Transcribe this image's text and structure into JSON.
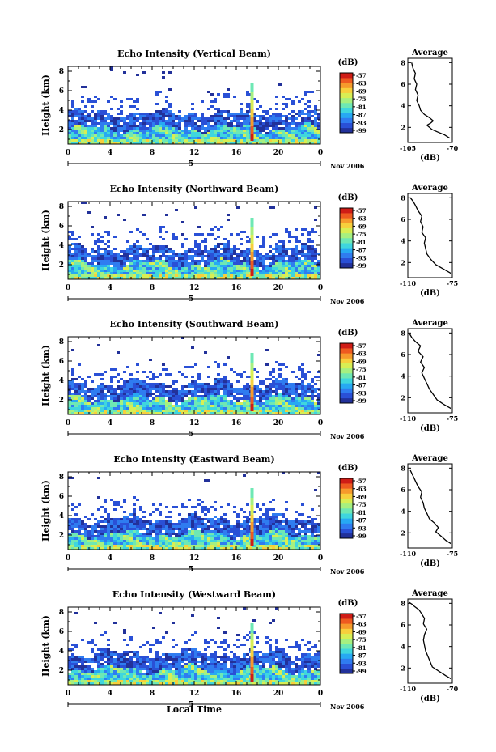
{
  "figure": {
    "xlabel": "Local Time",
    "date_label": "Nov 2006",
    "day_label": "5",
    "cbar_unit": "(dB)",
    "avg_title": "Average",
    "avg_xlabel": "(dB)"
  },
  "colormap": [
    "#22319a",
    "#2a50d6",
    "#2f7cf0",
    "#27a9f3",
    "#3fd6de",
    "#6ee8b4",
    "#a6f080",
    "#d8ee54",
    "#f7cf3c",
    "#f69a2c",
    "#ee5a20",
    "#cf1c16"
  ],
  "chart_data": [
    {
      "type": "heatmap",
      "title": "Echo Intensity (Vertical Beam)",
      "ylabel": "Height (km)",
      "x_ticks": [
        "0",
        "4",
        "8",
        "12",
        "16",
        "20",
        "0"
      ],
      "y_ticks": [
        "2",
        "4",
        "6",
        "8"
      ],
      "xlim": [
        0,
        24
      ],
      "ylim": [
        0.5,
        8.5
      ],
      "colorbar_ticks": [
        "-57",
        "-63",
        "-69",
        "-75",
        "-81",
        "-87",
        "-93",
        "-99"
      ],
      "average": {
        "xlim": [
          -105,
          -70
        ],
        "x_ticks": [
          "-105",
          "-70"
        ],
        "y_ticks": [
          "2",
          "4",
          "6",
          "8"
        ],
        "profile": [
          [
            -72,
            1.0
          ],
          [
            -76,
            1.3
          ],
          [
            -82,
            1.6
          ],
          [
            -86,
            1.8
          ],
          [
            -88,
            2.0
          ],
          [
            -90,
            2.2
          ],
          [
            -87,
            2.4
          ],
          [
            -85,
            2.6
          ],
          [
            -88,
            2.9
          ],
          [
            -92,
            3.2
          ],
          [
            -95,
            3.6
          ],
          [
            -96,
            4.0
          ],
          [
            -98,
            4.5
          ],
          [
            -97,
            5.0
          ],
          [
            -99,
            5.5
          ],
          [
            -98,
            6.0
          ],
          [
            -100,
            6.5
          ],
          [
            -99,
            7.0
          ],
          [
            -101,
            7.5
          ],
          [
            -102,
            8.0
          ]
        ]
      }
    },
    {
      "type": "heatmap",
      "title": "Echo Intensity (Northward Beam)",
      "ylabel": "Height (km)",
      "x_ticks": [
        "0",
        "4",
        "8",
        "12",
        "16",
        "20",
        "0"
      ],
      "y_ticks": [
        "2",
        "4",
        "6",
        "8"
      ],
      "xlim": [
        0,
        24
      ],
      "ylim": [
        0.5,
        8.5
      ],
      "colorbar_ticks": [
        "-57",
        "-63",
        "-69",
        "-75",
        "-81",
        "-87",
        "-93",
        "-99"
      ],
      "average": {
        "xlim": [
          -110,
          -75
        ],
        "x_ticks": [
          "-110",
          "-75"
        ],
        "y_ticks": [
          "2",
          "4",
          "6",
          "8"
        ],
        "profile": [
          [
            -76,
            1.0
          ],
          [
            -82,
            1.4
          ],
          [
            -88,
            1.8
          ],
          [
            -92,
            2.3
          ],
          [
            -95,
            2.8
          ],
          [
            -96,
            3.3
          ],
          [
            -97,
            3.8
          ],
          [
            -96,
            4.3
          ],
          [
            -99,
            4.8
          ],
          [
            -98,
            5.3
          ],
          [
            -100,
            5.8
          ],
          [
            -99,
            6.3
          ],
          [
            -102,
            6.8
          ],
          [
            -104,
            7.3
          ],
          [
            -106,
            7.7
          ],
          [
            -108,
            8.0
          ]
        ]
      }
    },
    {
      "type": "heatmap",
      "title": "Echo Intensity (Southward Beam)",
      "ylabel": "Height (km)",
      "x_ticks": [
        "0",
        "4",
        "8",
        "12",
        "16",
        "20",
        "0"
      ],
      "y_ticks": [
        "2",
        "4",
        "6",
        "8"
      ],
      "xlim": [
        0,
        24
      ],
      "ylim": [
        0.5,
        8.5
      ],
      "colorbar_ticks": [
        "-57",
        "-63",
        "-69",
        "-75",
        "-81",
        "-87",
        "-93",
        "-99"
      ],
      "average": {
        "xlim": [
          -110,
          -75
        ],
        "x_ticks": [
          "-110",
          "-75"
        ],
        "y_ticks": [
          "2",
          "4",
          "6",
          "8"
        ],
        "profile": [
          [
            -76,
            1.0
          ],
          [
            -82,
            1.4
          ],
          [
            -87,
            1.8
          ],
          [
            -90,
            2.3
          ],
          [
            -93,
            2.8
          ],
          [
            -95,
            3.3
          ],
          [
            -97,
            3.8
          ],
          [
            -99,
            4.3
          ],
          [
            -97,
            4.8
          ],
          [
            -100,
            5.3
          ],
          [
            -98,
            5.8
          ],
          [
            -102,
            6.3
          ],
          [
            -100,
            6.8
          ],
          [
            -104,
            7.2
          ],
          [
            -107,
            7.6
          ],
          [
            -109,
            8.0
          ]
        ]
      }
    },
    {
      "type": "heatmap",
      "title": "Echo Intensity (Eastward Beam)",
      "ylabel": "Height (km)",
      "x_ticks": [
        "0",
        "4",
        "8",
        "12",
        "16",
        "20",
        "0"
      ],
      "y_ticks": [
        "2",
        "4",
        "6",
        "8"
      ],
      "xlim": [
        0,
        24
      ],
      "ylim": [
        0.5,
        8.5
      ],
      "colorbar_ticks": [
        "-57",
        "-63",
        "-69",
        "-75",
        "-81",
        "-87",
        "-93",
        "-99"
      ],
      "average": {
        "xlim": [
          -110,
          -75
        ],
        "x_ticks": [
          "-110",
          "-75"
        ],
        "y_ticks": [
          "2",
          "4",
          "6",
          "8"
        ],
        "profile": [
          [
            -76,
            1.0
          ],
          [
            -80,
            1.3
          ],
          [
            -84,
            1.7
          ],
          [
            -88,
            2.1
          ],
          [
            -86,
            2.5
          ],
          [
            -89,
            2.9
          ],
          [
            -93,
            3.3
          ],
          [
            -95,
            3.8
          ],
          [
            -97,
            4.3
          ],
          [
            -98,
            4.8
          ],
          [
            -100,
            5.3
          ],
          [
            -99,
            5.8
          ],
          [
            -102,
            6.3
          ],
          [
            -104,
            6.8
          ],
          [
            -106,
            7.3
          ],
          [
            -108,
            7.8
          ]
        ]
      }
    },
    {
      "type": "heatmap",
      "title": "Echo Intensity (Westward Beam)",
      "ylabel": "Height (km)",
      "x_ticks": [
        "0",
        "4",
        "8",
        "12",
        "16",
        "20",
        "0"
      ],
      "y_ticks": [
        "2",
        "4",
        "6",
        "8"
      ],
      "xlim": [
        0,
        24
      ],
      "ylim": [
        0.5,
        8.5
      ],
      "colorbar_ticks": [
        "-57",
        "-63",
        "-69",
        "-75",
        "-81",
        "-87",
        "-93",
        "-99"
      ],
      "average": {
        "xlim": [
          -110,
          -70
        ],
        "x_ticks": [
          "-110",
          "-70"
        ],
        "y_ticks": [
          "2",
          "4",
          "6",
          "8"
        ],
        "profile": [
          [
            -71,
            1.0
          ],
          [
            -76,
            1.3
          ],
          [
            -82,
            1.7
          ],
          [
            -88,
            2.1
          ],
          [
            -90,
            2.6
          ],
          [
            -92,
            3.1
          ],
          [
            -94,
            3.6
          ],
          [
            -95,
            4.1
          ],
          [
            -96,
            4.6
          ],
          [
            -95,
            5.1
          ],
          [
            -93,
            5.6
          ],
          [
            -96,
            6.1
          ],
          [
            -95,
            6.6
          ],
          [
            -98,
            7.1
          ],
          [
            -100,
            7.4
          ],
          [
            -104,
            7.7
          ],
          [
            -106,
            7.9
          ],
          [
            -109,
            8.1
          ]
        ]
      }
    }
  ]
}
